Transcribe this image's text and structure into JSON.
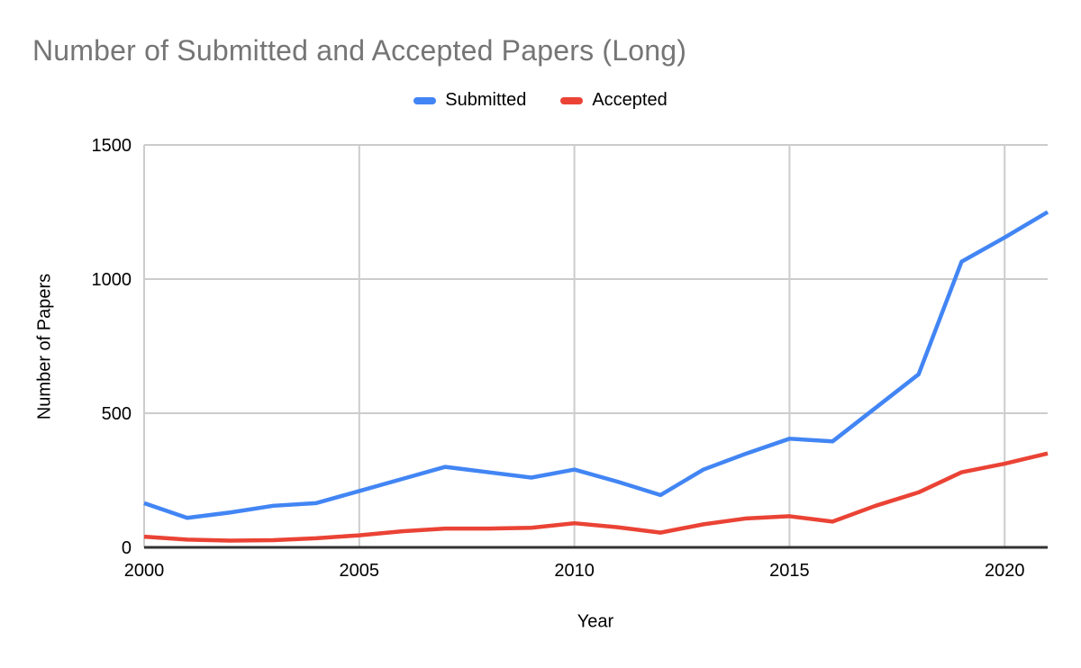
{
  "page": {
    "background": "#ffffff",
    "title_color": "#757575",
    "grid_color": "#cccccc",
    "axis_line_color": "#333333",
    "tick_label_color": "#000000"
  },
  "chart_data": {
    "type": "line",
    "title": "Number of Submitted and Accepted Papers (Long)",
    "xlabel": "Year",
    "ylabel": "Number of Papers",
    "x": [
      2000,
      2001,
      2002,
      2003,
      2004,
      2005,
      2006,
      2007,
      2008,
      2009,
      2010,
      2011,
      2012,
      2013,
      2014,
      2015,
      2016,
      2017,
      2018,
      2019,
      2020,
      2021
    ],
    "series": [
      {
        "name": "Submitted",
        "color": "#4285F4",
        "values": [
          165,
          110,
          130,
          155,
          165,
          210,
          255,
          300,
          280,
          260,
          290,
          245,
          195,
          290,
          350,
          405,
          395,
          520,
          645,
          1065,
          1155,
          1250
        ]
      },
      {
        "name": "Accepted",
        "color": "#EA4335",
        "values": [
          40,
          29,
          25,
          27,
          34,
          45,
          60,
          70,
          70,
          73,
          90,
          75,
          55,
          86,
          108,
          116,
          96,
          155,
          205,
          280,
          312,
          350
        ]
      }
    ],
    "xlim": [
      2000,
      2021
    ],
    "ylim": [
      0,
      1500
    ],
    "xticks": [
      2000,
      2005,
      2010,
      2015,
      2020
    ],
    "yticks": [
      0,
      500,
      1000,
      1500
    ],
    "grid": true,
    "legend_position": "top-center"
  }
}
